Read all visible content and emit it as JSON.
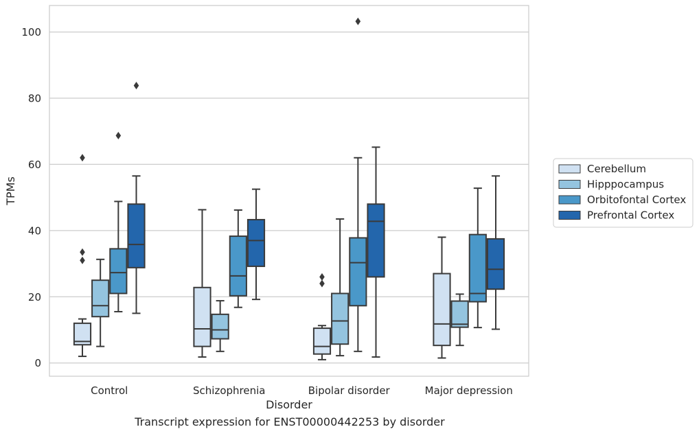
{
  "figure_caption": "Transcript expression for ENST00000442253 by disorder",
  "chart_data": {
    "type": "box",
    "xlabel": "Disorder",
    "ylabel": "TPMs",
    "categories": [
      "Control",
      "Schizophrenia",
      "Bipolar disorder",
      "Major depression"
    ],
    "ylim": [
      -4,
      108
    ],
    "yticks": [
      0,
      20,
      40,
      60,
      80,
      100
    ],
    "grid": "horizontal",
    "legend_position": "outside-right",
    "series": [
      {
        "name": "Cerebellum",
        "color": "#d0e1f2",
        "boxes": [
          {
            "whisker_low": 2.0,
            "q1": 5.5,
            "median": 6.5,
            "q3": 12.0,
            "whisker_high": 13.3,
            "outliers": [
              31.0,
              33.5,
              62.0
            ]
          },
          {
            "whisker_low": 1.8,
            "q1": 5.0,
            "median": 10.3,
            "q3": 22.8,
            "whisker_high": 46.3,
            "outliers": []
          },
          {
            "whisker_low": 1.0,
            "q1": 2.7,
            "median": 5.0,
            "q3": 10.5,
            "whisker_high": 11.3,
            "outliers": [
              24.0,
              26.0
            ]
          },
          {
            "whisker_low": 1.5,
            "q1": 5.3,
            "median": 11.8,
            "q3": 27.0,
            "whisker_high": 38.0,
            "outliers": []
          }
        ]
      },
      {
        "name": "Hipppocampus",
        "color": "#94c4df",
        "boxes": [
          {
            "whisker_low": 5.0,
            "q1": 14.0,
            "median": 17.3,
            "q3": 25.0,
            "whisker_high": 31.3,
            "outliers": []
          },
          {
            "whisker_low": 3.5,
            "q1": 7.3,
            "median": 10.0,
            "q3": 14.7,
            "whisker_high": 18.8,
            "outliers": []
          },
          {
            "whisker_low": 2.2,
            "q1": 5.7,
            "median": 12.7,
            "q3": 21.0,
            "whisker_high": 43.5,
            "outliers": []
          },
          {
            "whisker_low": 5.3,
            "q1": 10.8,
            "median": 11.7,
            "q3": 18.7,
            "whisker_high": 20.8,
            "outliers": []
          }
        ]
      },
      {
        "name": "Orbitofontal Cortex",
        "color": "#4a98c9",
        "boxes": [
          {
            "whisker_low": 15.5,
            "q1": 21.0,
            "median": 27.3,
            "q3": 34.5,
            "whisker_high": 48.8,
            "outliers": [
              68.7
            ]
          },
          {
            "whisker_low": 16.8,
            "q1": 20.3,
            "median": 26.3,
            "q3": 38.3,
            "whisker_high": 46.2,
            "outliers": []
          },
          {
            "whisker_low": 3.5,
            "q1": 17.3,
            "median": 30.3,
            "q3": 37.8,
            "whisker_high": 62.0,
            "outliers": [
              103.2
            ]
          },
          {
            "whisker_low": 10.7,
            "q1": 18.5,
            "median": 21.0,
            "q3": 38.8,
            "whisker_high": 52.8,
            "outliers": []
          }
        ]
      },
      {
        "name": "Prefrontal Cortex",
        "color": "#2366ac",
        "boxes": [
          {
            "whisker_low": 15.0,
            "q1": 28.8,
            "median": 35.8,
            "q3": 48.0,
            "whisker_high": 56.5,
            "outliers": [
              83.8
            ]
          },
          {
            "whisker_low": 19.2,
            "q1": 29.2,
            "median": 37.0,
            "q3": 43.3,
            "whisker_high": 52.5,
            "outliers": []
          },
          {
            "whisker_low": 1.8,
            "q1": 26.0,
            "median": 42.8,
            "q3": 48.0,
            "whisker_high": 65.2,
            "outliers": []
          },
          {
            "whisker_low": 10.2,
            "q1": 22.3,
            "median": 28.3,
            "q3": 37.5,
            "whisker_high": 56.5,
            "outliers": []
          }
        ]
      }
    ]
  }
}
